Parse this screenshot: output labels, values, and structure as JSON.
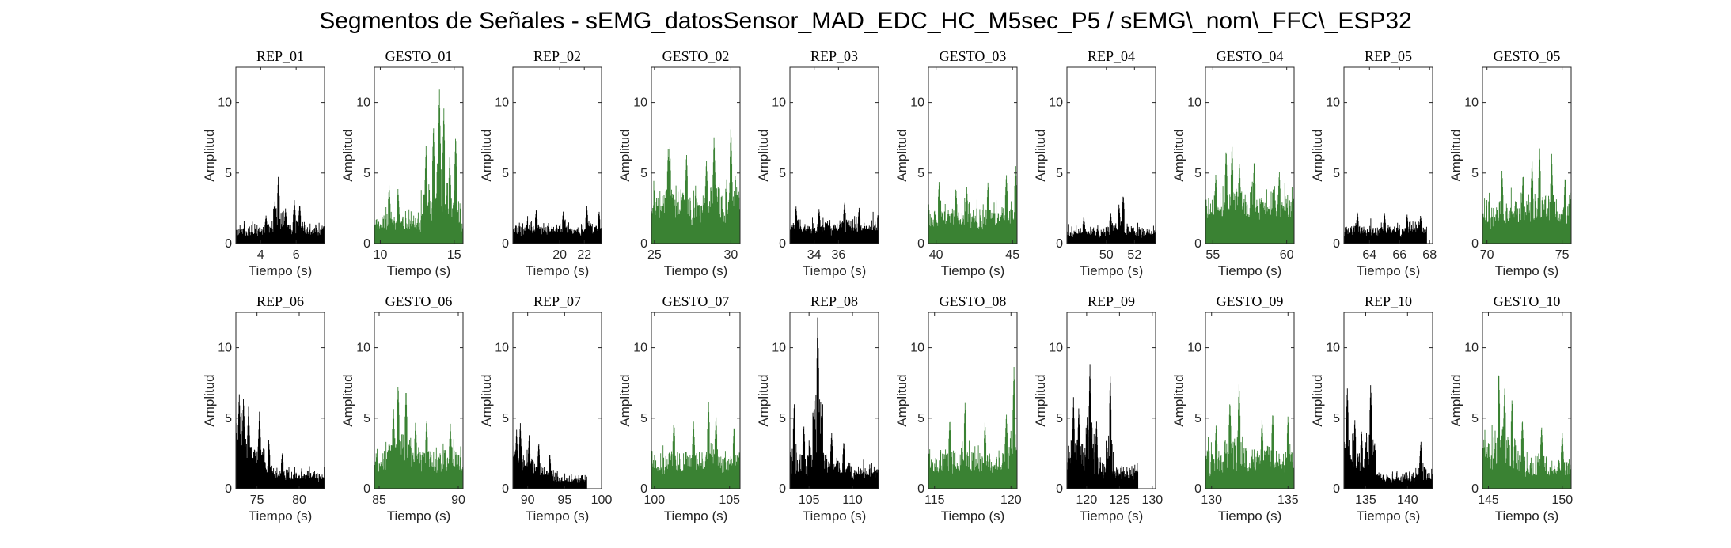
{
  "figure_title": "Segmentos de Señales - sEMG_datosSensor_MAD_EDC_HC_M5sec_P5 / sEMG\\_nom\\_FFC\\_ESP32",
  "colors": {
    "rest": "#000000",
    "gesture": "#3a8233",
    "axes": "#262626"
  },
  "chart_data": [
    {
      "type": "bar",
      "title": "REP_01",
      "xlabel": "Tiempo (s)",
      "ylabel": "Amplitud",
      "xlim": [
        2.6,
        7.6
      ],
      "ylim": [
        0,
        12.5
      ],
      "xticks": [
        4,
        6
      ],
      "yticks": [
        0,
        5,
        10
      ],
      "color": "rest",
      "x_start": 2.6,
      "x_end": 7.6,
      "baseline": 1.2,
      "peaks": [
        [
          5.0,
          4.9
        ],
        [
          5.9,
          3.1
        ],
        [
          4.8,
          3.0
        ],
        [
          6.2,
          2.8
        ],
        [
          5.4,
          2.5
        ],
        [
          4.3,
          2.0
        ]
      ]
    },
    {
      "type": "bar",
      "title": "GESTO_01",
      "xlabel": "Tiempo (s)",
      "ylabel": "Amplitud",
      "xlim": [
        9.6,
        15.6
      ],
      "ylim": [
        0,
        12.5
      ],
      "xticks": [
        10,
        15
      ],
      "yticks": [
        0,
        5,
        10
      ],
      "color": "gesture",
      "x_start": 9.6,
      "x_end": 15.6,
      "baseline": 2.0,
      "peaks": [
        [
          14.0,
          11.0
        ],
        [
          14.3,
          9.7
        ],
        [
          13.6,
          8.5
        ],
        [
          15.1,
          7.8
        ],
        [
          13.1,
          7.0
        ],
        [
          14.7,
          6.2
        ],
        [
          10.6,
          4.2
        ],
        [
          11.2,
          3.9
        ]
      ]
    },
    {
      "type": "bar",
      "title": "REP_02",
      "xlabel": "Tiempo (s)",
      "ylabel": "Amplitud",
      "xlim": [
        16.2,
        23.4
      ],
      "ylim": [
        0,
        12.5
      ],
      "xticks": [
        20,
        22
      ],
      "yticks": [
        0,
        5,
        10
      ],
      "color": "rest",
      "x_start": 16.2,
      "x_end": 23.4,
      "baseline": 1.4,
      "peaks": [
        [
          22.2,
          2.7
        ],
        [
          18.1,
          2.5
        ],
        [
          20.3,
          2.4
        ],
        [
          23.2,
          2.3
        ]
      ]
    },
    {
      "type": "bar",
      "title": "GESTO_02",
      "xlabel": "Tiempo (s)",
      "ylabel": "Amplitud",
      "xlim": [
        24.8,
        30.6
      ],
      "ylim": [
        0,
        12.5
      ],
      "xticks": [
        25,
        30
      ],
      "yticks": [
        0,
        5,
        10
      ],
      "color": "gesture",
      "x_start": 24.8,
      "x_end": 30.6,
      "baseline": 3.5,
      "peaks": [
        [
          30.0,
          8.3
        ],
        [
          28.9,
          7.6
        ],
        [
          26.0,
          7.2
        ],
        [
          27.1,
          6.5
        ],
        [
          28.4,
          6.0
        ],
        [
          25.9,
          6.8
        ]
      ]
    },
    {
      "type": "bar",
      "title": "REP_03",
      "xlabel": "Tiempo (s)",
      "ylabel": "Amplitud",
      "xlim": [
        32.0,
        39.3
      ],
      "ylim": [
        0,
        12.5
      ],
      "xticks": [
        34,
        36
      ],
      "yticks": [
        0,
        5,
        10
      ],
      "color": "rest",
      "x_start": 32.0,
      "x_end": 39.3,
      "baseline": 1.6,
      "peaks": [
        [
          36.5,
          3.0
        ],
        [
          32.5,
          2.7
        ],
        [
          37.7,
          2.6
        ],
        [
          34.4,
          2.5
        ]
      ]
    },
    {
      "type": "bar",
      "title": "GESTO_03",
      "xlabel": "Tiempo (s)",
      "ylabel": "Amplitud",
      "xlim": [
        39.5,
        45.3
      ],
      "ylim": [
        0,
        12.5
      ],
      "xticks": [
        40,
        45
      ],
      "yticks": [
        0,
        5,
        10
      ],
      "color": "gesture",
      "x_start": 39.5,
      "x_end": 45.3,
      "baseline": 2.4,
      "peaks": [
        [
          45.2,
          5.8
        ],
        [
          44.6,
          5.0
        ],
        [
          40.2,
          4.5
        ],
        [
          43.4,
          4.4
        ],
        [
          42.0,
          4.2
        ],
        [
          41.3,
          4.0
        ]
      ]
    },
    {
      "type": "bar",
      "title": "REP_04",
      "xlabel": "Tiempo (s)",
      "ylabel": "Amplitud",
      "xlim": [
        47.2,
        53.5
      ],
      "ylim": [
        0,
        12.5
      ],
      "xticks": [
        50,
        52
      ],
      "yticks": [
        0,
        5,
        10
      ],
      "color": "rest",
      "x_start": 47.2,
      "x_end": 53.5,
      "baseline": 1.1,
      "peaks": [
        [
          51.2,
          3.5
        ],
        [
          50.9,
          2.8
        ],
        [
          50.3,
          2.3
        ],
        [
          48.4,
          1.9
        ]
      ]
    },
    {
      "type": "bar",
      "title": "GESTO_04",
      "xlabel": "Tiempo (s)",
      "ylabel": "Amplitud",
      "xlim": [
        54.5,
        60.5
      ],
      "ylim": [
        0,
        12.5
      ],
      "xticks": [
        55,
        60
      ],
      "yticks": [
        0,
        5,
        10
      ],
      "color": "gesture",
      "x_start": 54.5,
      "x_end": 60.5,
      "baseline": 3.5,
      "peaks": [
        [
          56.3,
          7.1
        ],
        [
          55.9,
          6.8
        ],
        [
          57.8,
          6.0
        ],
        [
          56.8,
          5.8
        ],
        [
          59.5,
          5.2
        ],
        [
          55.2,
          5.0
        ]
      ]
    },
    {
      "type": "bar",
      "title": "REP_05",
      "xlabel": "Tiempo (s)",
      "ylabel": "Amplitud",
      "xlim": [
        62.3,
        68.2
      ],
      "ylim": [
        0,
        12.5
      ],
      "xticks": [
        64,
        66,
        68
      ],
      "yticks": [
        0,
        5,
        10
      ],
      "color": "rest",
      "x_start": 62.3,
      "x_end": 67.8,
      "baseline": 1.3,
      "peaks": [
        [
          63.2,
          2.3
        ],
        [
          65.0,
          2.2
        ],
        [
          66.5,
          2.1
        ],
        [
          67.4,
          2.0
        ]
      ]
    },
    {
      "type": "bar",
      "title": "GESTO_05",
      "xlabel": "Tiempo (s)",
      "ylabel": "Amplitud",
      "xlim": [
        69.7,
        75.6
      ],
      "ylim": [
        0,
        12.5
      ],
      "xticks": [
        70,
        75
      ],
      "yticks": [
        0,
        5,
        10
      ],
      "color": "gesture",
      "x_start": 69.7,
      "x_end": 75.6,
      "baseline": 2.8,
      "peaks": [
        [
          73.5,
          6.9
        ],
        [
          74.3,
          6.4
        ],
        [
          73.0,
          5.9
        ],
        [
          71.0,
          5.2
        ],
        [
          72.4,
          5.0
        ],
        [
          75.2,
          4.8
        ]
      ]
    },
    {
      "type": "bar",
      "title": "REP_06",
      "xlabel": "Tiempo (s)",
      "ylabel": "Amplitud",
      "xlim": [
        72.5,
        83.0
      ],
      "ylim": [
        0,
        12.5
      ],
      "xticks": [
        75,
        80
      ],
      "yticks": [
        0,
        5,
        10
      ],
      "color": "rest",
      "x_start": 72.5,
      "x_end": 83.0,
      "baseline": 1.5,
      "decay": {
        "start": 5.0,
        "end": 1.2
      },
      "peaks": [
        [
          72.9,
          6.8
        ],
        [
          73.4,
          6.5
        ],
        [
          74.0,
          5.8
        ],
        [
          75.3,
          5.5
        ],
        [
          76.4,
          3.5
        ],
        [
          78.0,
          2.6
        ]
      ]
    },
    {
      "type": "bar",
      "title": "GESTO_06",
      "xlabel": "Tiempo (s)",
      "ylabel": "Amplitud",
      "xlim": [
        84.7,
        90.3
      ],
      "ylim": [
        0,
        12.5
      ],
      "xticks": [
        85,
        90
      ],
      "yticks": [
        0,
        5,
        10
      ],
      "color": "gesture",
      "x_start": 84.7,
      "x_end": 90.3,
      "baseline": 2.6,
      "peaks": [
        [
          86.2,
          7.5
        ],
        [
          86.7,
          7.2
        ],
        [
          85.9,
          6.0
        ],
        [
          88.0,
          5.0
        ],
        [
          89.5,
          4.6
        ],
        [
          87.3,
          4.8
        ]
      ]
    },
    {
      "type": "bar",
      "title": "REP_07",
      "xlabel": "Tiempo (s)",
      "ylabel": "Amplitud",
      "xlim": [
        88.0,
        100.0
      ],
      "ylim": [
        0,
        12.5
      ],
      "xticks": [
        90,
        95,
        100
      ],
      "yticks": [
        0,
        5,
        10
      ],
      "color": "rest",
      "x_start": 88.0,
      "x_end": 98.0,
      "baseline": 1.2,
      "decay": {
        "start": 3.5,
        "end": 0.9
      },
      "peaks": [
        [
          89.0,
          4.7
        ],
        [
          88.5,
          4.2
        ],
        [
          90.2,
          3.8
        ],
        [
          91.5,
          3.3
        ],
        [
          93.0,
          2.5
        ]
      ]
    },
    {
      "type": "bar",
      "title": "GESTO_07",
      "xlabel": "Tiempo (s)",
      "ylabel": "Amplitud",
      "xlim": [
        99.8,
        105.7
      ],
      "ylim": [
        0,
        12.5
      ],
      "xticks": [
        100,
        105
      ],
      "yticks": [
        0,
        5,
        10
      ],
      "color": "gesture",
      "x_start": 99.8,
      "x_end": 105.7,
      "baseline": 2.3,
      "peaks": [
        [
          103.6,
          6.3
        ],
        [
          101.3,
          5.0
        ],
        [
          104.1,
          5.2
        ],
        [
          102.6,
          4.8
        ],
        [
          105.3,
          4.5
        ]
      ]
    },
    {
      "type": "bar",
      "title": "REP_08",
      "xlabel": "Tiempo (s)",
      "ylabel": "Amplitud",
      "xlim": [
        102.8,
        113.0
      ],
      "ylim": [
        0,
        12.5
      ],
      "xticks": [
        105,
        110
      ],
      "yticks": [
        0,
        5,
        10
      ],
      "color": "rest",
      "x_start": 102.8,
      "x_end": 113.0,
      "baseline": 1.8,
      "peaks": [
        [
          106.0,
          12.5
        ],
        [
          105.6,
          6.3
        ],
        [
          103.3,
          6.2
        ],
        [
          106.4,
          5.4
        ],
        [
          104.4,
          4.6
        ],
        [
          107.6,
          4.0
        ],
        [
          109.0,
          3.4
        ]
      ]
    },
    {
      "type": "bar",
      "title": "GESTO_08",
      "xlabel": "Tiempo (s)",
      "ylabel": "Amplitud",
      "xlim": [
        114.6,
        120.4
      ],
      "ylim": [
        0,
        12.5
      ],
      "xticks": [
        115,
        120
      ],
      "yticks": [
        0,
        5,
        10
      ],
      "color": "gesture",
      "x_start": 114.6,
      "x_end": 120.4,
      "baseline": 2.4,
      "peaks": [
        [
          120.2,
          8.7
        ],
        [
          117.0,
          6.2
        ],
        [
          116.0,
          5.0
        ],
        [
          119.7,
          5.4
        ],
        [
          118.3,
          4.8
        ]
      ]
    },
    {
      "type": "bar",
      "title": "REP_09",
      "xlabel": "Tiempo (s)",
      "ylabel": "Amplitud",
      "xlim": [
        117.0,
        130.5
      ],
      "ylim": [
        0,
        12.5
      ],
      "xticks": [
        120,
        125,
        130
      ],
      "yticks": [
        0,
        5,
        10
      ],
      "color": "rest",
      "x_start": 117.0,
      "x_end": 127.8,
      "baseline": 1.7,
      "decay": {
        "start": 3.0,
        "end": 1.5
      },
      "peaks": [
        [
          120.5,
          8.9
        ],
        [
          123.6,
          8.2
        ],
        [
          118.0,
          6.5
        ],
        [
          120.1,
          5.3
        ],
        [
          121.5,
          4.8
        ],
        [
          118.8,
          5.8
        ]
      ]
    },
    {
      "type": "bar",
      "title": "GESTO_09",
      "xlabel": "Tiempo (s)",
      "ylabel": "Amplitud",
      "xlim": [
        129.6,
        135.4
      ],
      "ylim": [
        0,
        12.5
      ],
      "xticks": [
        130,
        135
      ],
      "yticks": [
        0,
        5,
        10
      ],
      "color": "gesture",
      "x_start": 129.6,
      "x_end": 135.4,
      "baseline": 2.6,
      "peaks": [
        [
          131.8,
          7.6
        ],
        [
          131.2,
          6.3
        ],
        [
          134.0,
          5.5
        ],
        [
          133.3,
          5.0
        ],
        [
          135.0,
          5.2
        ],
        [
          130.3,
          4.6
        ]
      ]
    },
    {
      "type": "bar",
      "title": "REP_10",
      "xlabel": "Tiempo (s)",
      "ylabel": "Amplitud",
      "xlim": [
        132.4,
        143.0
      ],
      "ylim": [
        0,
        12.5
      ],
      "xticks": [
        135,
        140
      ],
      "yticks": [
        0,
        5,
        10
      ],
      "color": "rest",
      "x_start": 132.4,
      "x_end": 143.0,
      "baseline": 1.3,
      "decay": {
        "start": 2.5,
        "end": 1.1
      },
      "peaks": [
        [
          132.8,
          7.3
        ],
        [
          135.6,
          7.5
        ],
        [
          133.7,
          5.0
        ],
        [
          134.5,
          4.2
        ],
        [
          141.6,
          3.4
        ]
      ]
    },
    {
      "type": "bar",
      "title": "GESTO_10",
      "xlabel": "Tiempo (s)",
      "ylabel": "Amplitud",
      "xlim": [
        144.6,
        150.6
      ],
      "ylim": [
        0,
        12.5
      ],
      "xticks": [
        145,
        150
      ],
      "yticks": [
        0,
        5,
        10
      ],
      "color": "gesture",
      "x_start": 144.6,
      "x_end": 150.6,
      "baseline": 2.0,
      "decay": {
        "start": 4.0,
        "end": 1.8
      },
      "peaks": [
        [
          145.7,
          8.5
        ],
        [
          146.1,
          7.3
        ],
        [
          146.6,
          6.5
        ],
        [
          147.3,
          5.0
        ],
        [
          148.6,
          4.5
        ],
        [
          150.0,
          4.0
        ]
      ]
    }
  ]
}
